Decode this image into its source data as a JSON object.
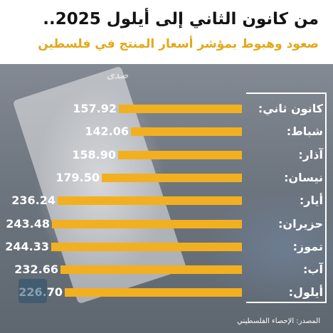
{
  "header": {
    "title": "من كانون الثاني إلى أيلول 2025..",
    "subtitle": "صعود وهبوط بمؤشر أسعار المنتج في فلسطين"
  },
  "chart_data": {
    "type": "bar",
    "orientation": "horizontal",
    "title": "من كانون الثاني إلى أيلول 2025..",
    "subtitle": "صعود وهبوط بمؤشر أسعار المنتج في فلسطين",
    "categories": [
      "كانون ثاني:",
      "شباط:",
      "آذار:",
      "نيسان:",
      "أيار:",
      "حزيران:",
      "تموز:",
      "آب:",
      "أيلول:"
    ],
    "values": [
      157.92,
      142.06,
      158.9,
      179.5,
      236.24,
      243.48,
      244.33,
      232.66,
      226.7
    ],
    "value_labels": [
      "157.92",
      "142.06",
      "158.90",
      "179.50",
      "236.24",
      "243.48",
      "244.33",
      "232.66",
      "226.70"
    ],
    "bar_color": "#f2b020",
    "grid": false,
    "legend": "none"
  },
  "footer": {
    "source": "المصدر: الإحصاء الفلسطيني"
  },
  "colors": {
    "accent": "#e3a81a",
    "bar": "#f2b020",
    "text_light": "#ffffff",
    "title": "#141414"
  }
}
